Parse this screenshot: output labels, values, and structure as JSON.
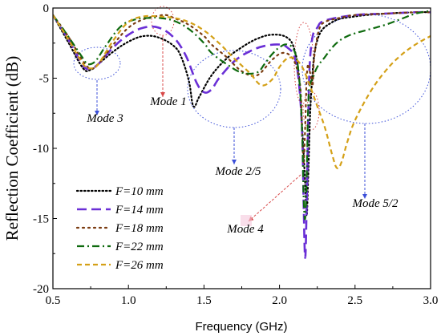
{
  "chart_data": {
    "type": "line",
    "title": "",
    "xlabel": "Frequency (GHz)",
    "ylabel": "Reflection Coefficient (dB)",
    "xlim": [
      0.5,
      3.0
    ],
    "ylim": [
      -20,
      0
    ],
    "xticks": [
      0.5,
      1.0,
      1.5,
      2.0,
      2.5,
      3.0
    ],
    "xtick_labels": [
      "0.5",
      "1.0",
      "1.5",
      "2.0",
      "2.5",
      "3.0"
    ],
    "yticks": [
      0,
      -5,
      -10,
      -15,
      -20
    ],
    "ytick_labels": [
      "0",
      "-5",
      "-10",
      "-15",
      "-20"
    ],
    "grid": false,
    "legend_position": "bottom-left",
    "series": [
      {
        "name": "F=10 mm",
        "color": "#000000",
        "dash": "dot",
        "x": [
          0.5,
          0.6,
          0.7,
          0.75,
          0.8,
          0.9,
          1.0,
          1.1,
          1.2,
          1.3,
          1.35,
          1.4,
          1.43,
          1.47,
          1.55,
          1.65,
          1.75,
          1.85,
          1.95,
          2.05,
          2.1,
          2.13,
          2.15,
          2.17,
          2.18,
          2.19,
          2.21,
          2.25,
          2.35,
          2.5,
          2.7,
          2.9,
          3.0
        ],
        "y": [
          -0.5,
          -2.4,
          -4.3,
          -4.4,
          -4.0,
          -3.1,
          -2.4,
          -2.0,
          -2.1,
          -2.7,
          -3.5,
          -5.2,
          -7.0,
          -6.3,
          -4.8,
          -3.6,
          -2.8,
          -2.2,
          -1.9,
          -2.1,
          -3.0,
          -5.0,
          -8.5,
          -12.5,
          -14.8,
          -12.0,
          -6.0,
          -2.3,
          -1.0,
          -0.6,
          -0.4,
          -0.3,
          -0.3
        ]
      },
      {
        "name": "F=14 mm",
        "color": "#6a2fd6",
        "dash": "long-dash",
        "x": [
          0.5,
          0.6,
          0.7,
          0.75,
          0.8,
          0.9,
          1.0,
          1.1,
          1.2,
          1.3,
          1.38,
          1.45,
          1.5,
          1.55,
          1.6,
          1.7,
          1.8,
          1.9,
          2.0,
          2.05,
          2.1,
          2.13,
          2.15,
          2.16,
          2.17,
          2.18,
          2.19,
          2.2,
          2.22,
          2.25,
          2.3,
          2.5,
          2.7,
          2.9,
          3.0
        ],
        "y": [
          -0.5,
          -2.2,
          -4.1,
          -4.3,
          -4.0,
          -2.8,
          -1.9,
          -1.4,
          -1.4,
          -2.1,
          -3.4,
          -5.3,
          -6.0,
          -5.8,
          -5.0,
          -3.8,
          -3.1,
          -2.7,
          -2.6,
          -2.8,
          -3.5,
          -5.5,
          -9.0,
          -14.0,
          -17.8,
          -14.0,
          -8.0,
          -4.0,
          -2.0,
          -1.4,
          -0.9,
          -0.5,
          -0.4,
          -0.3,
          -0.3
        ]
      },
      {
        "name": "F=18 mm",
        "color": "#7a3b10",
        "dash": "dot-sparse",
        "x": [
          0.5,
          0.6,
          0.7,
          0.75,
          0.8,
          0.9,
          1.0,
          1.1,
          1.2,
          1.25,
          1.3,
          1.4,
          1.5,
          1.55,
          1.65,
          1.75,
          1.85,
          1.95,
          2.02,
          2.08,
          2.12,
          2.14,
          2.15,
          2.16,
          2.17,
          2.18,
          2.19,
          2.2,
          2.21,
          2.22,
          2.23,
          2.26,
          2.3,
          2.4,
          2.5,
          2.7,
          2.9,
          3.0
        ],
        "y": [
          -0.5,
          -2.0,
          -3.8,
          -4.3,
          -4.0,
          -2.6,
          -1.4,
          -0.8,
          -0.55,
          -0.5,
          -0.7,
          -1.2,
          -2.0,
          -2.6,
          -3.5,
          -4.5,
          -4.8,
          -3.7,
          -3.2,
          -3.5,
          -4.5,
          -6.0,
          -9.0,
          -11.0,
          -8.5,
          -5.0,
          -4.0,
          -4.5,
          -5.0,
          -5.5,
          -3.5,
          -1.6,
          -1.0,
          -0.7,
          -0.5,
          -0.4,
          -0.3,
          -0.3
        ]
      },
      {
        "name": "F=22 mm",
        "color": "#0e6a0e",
        "dash": "dash-dot",
        "x": [
          0.5,
          0.6,
          0.7,
          0.73,
          0.78,
          0.85,
          0.95,
          1.05,
          1.15,
          1.2,
          1.3,
          1.4,
          1.5,
          1.55,
          1.65,
          1.75,
          1.85,
          1.9,
          1.95,
          2.0,
          2.05,
          2.1,
          2.13,
          2.15,
          2.16,
          2.17,
          2.18,
          2.19,
          2.2,
          2.22,
          2.25,
          2.3,
          2.35,
          2.4,
          2.45,
          2.5,
          2.6,
          2.7,
          2.8,
          2.9,
          3.0
        ],
        "y": [
          -0.5,
          -2.0,
          -3.6,
          -4.0,
          -3.8,
          -2.7,
          -1.3,
          -0.8,
          -0.7,
          -0.7,
          -0.9,
          -1.5,
          -2.5,
          -3.2,
          -4.0,
          -4.6,
          -4.6,
          -4.0,
          -3.3,
          -2.8,
          -2.6,
          -3.1,
          -5.0,
          -9.0,
          -13.5,
          -15.0,
          -12.0,
          -7.0,
          -5.5,
          -5.0,
          -4.2,
          -3.5,
          -2.8,
          -2.3,
          -2.0,
          -1.8,
          -1.5,
          -1.2,
          -0.8,
          -0.4,
          -0.2
        ]
      },
      {
        "name": "F=26 mm",
        "color": "#d4a017",
        "dash": "dash",
        "x": [
          0.5,
          0.6,
          0.7,
          0.75,
          0.8,
          0.9,
          1.0,
          1.1,
          1.2,
          1.3,
          1.4,
          1.5,
          1.6,
          1.7,
          1.8,
          1.88,
          1.95,
          2.0,
          2.05,
          2.1,
          2.15,
          2.2,
          2.25,
          2.3,
          2.35,
          2.38,
          2.41,
          2.45,
          2.5,
          2.6,
          2.7,
          2.8,
          2.9,
          3.0
        ],
        "y": [
          -0.5,
          -2.2,
          -4.0,
          -4.3,
          -4.0,
          -2.3,
          -1.0,
          -0.6,
          -0.6,
          -0.7,
          -1.0,
          -1.6,
          -2.5,
          -3.6,
          -4.6,
          -5.5,
          -5.1,
          -4.2,
          -3.6,
          -3.6,
          -4.2,
          -5.5,
          -7.0,
          -8.5,
          -10.5,
          -11.4,
          -11.0,
          -9.5,
          -8.0,
          -6.0,
          -4.5,
          -3.4,
          -2.6,
          -2.0
        ]
      }
    ],
    "annotations": [
      {
        "text": "Mode 3",
        "x": 0.8,
        "y": -7.6
      },
      {
        "text": "Mode 1",
        "x": 1.24,
        "y": -6.9
      },
      {
        "text": "Mode 2/5",
        "x": 1.7,
        "y": -11.7
      },
      {
        "text": "Mode 4",
        "x": 1.8,
        "y": -15.7
      },
      {
        "text": "Mode 5/2",
        "x": 2.57,
        "y": -14.1
      }
    ]
  }
}
